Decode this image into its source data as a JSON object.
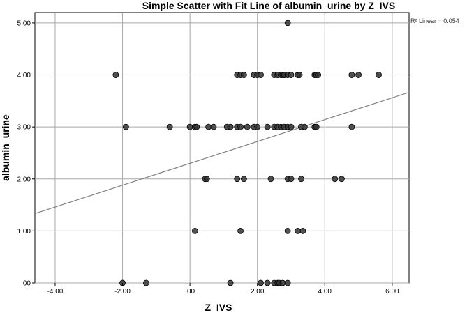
{
  "chart_data": {
    "type": "scatter",
    "title": "Simple Scatter with Fit Line of albumin_urine by Z_IVS",
    "xlabel": "Z_IVS",
    "ylabel": "albumin_urine",
    "xlim": [
      -4.6,
      6.5
    ],
    "ylim": [
      0,
      5.2
    ],
    "x_ticks": [
      -4,
      -2,
      0,
      2,
      4,
      6
    ],
    "x_tick_labels": [
      "-4.00",
      "-2.00",
      ".00",
      "2.00",
      "4.00",
      "6.00"
    ],
    "y_ticks": [
      0,
      1,
      2,
      3,
      4,
      5
    ],
    "y_tick_labels": [
      ".00",
      "1.00",
      "2.00",
      "3.00",
      "4.00",
      "5.00"
    ],
    "grid": true,
    "fit_line": {
      "intercept": 2.3,
      "slope": 0.21,
      "label": "R² Linear = 0.054"
    },
    "marker_color": "#333333",
    "line_color": "#808080",
    "series": [
      {
        "points": [
          [
            2.9,
            5
          ],
          [
            -2.2,
            4
          ],
          [
            1.4,
            4
          ],
          [
            1.5,
            4
          ],
          [
            1.6,
            4
          ],
          [
            1.9,
            4
          ],
          [
            2.0,
            4
          ],
          [
            2.1,
            4
          ],
          [
            2.5,
            4
          ],
          [
            2.6,
            4
          ],
          [
            2.7,
            4
          ],
          [
            2.75,
            4
          ],
          [
            2.8,
            4
          ],
          [
            2.9,
            4
          ],
          [
            3.0,
            4
          ],
          [
            3.2,
            4
          ],
          [
            3.25,
            4
          ],
          [
            3.7,
            4
          ],
          [
            3.75,
            4
          ],
          [
            3.8,
            4
          ],
          [
            4.8,
            4
          ],
          [
            5.0,
            4
          ],
          [
            5.6,
            4
          ],
          [
            -1.9,
            3
          ],
          [
            -0.6,
            3
          ],
          [
            0.0,
            3
          ],
          [
            0.15,
            3
          ],
          [
            0.2,
            3
          ],
          [
            0.55,
            3
          ],
          [
            0.7,
            3
          ],
          [
            1.1,
            3
          ],
          [
            1.2,
            3
          ],
          [
            1.4,
            3
          ],
          [
            1.5,
            3
          ],
          [
            1.7,
            3
          ],
          [
            1.9,
            3
          ],
          [
            2.0,
            3
          ],
          [
            2.3,
            3
          ],
          [
            2.5,
            3
          ],
          [
            2.6,
            3
          ],
          [
            2.7,
            3
          ],
          [
            2.8,
            3
          ],
          [
            2.9,
            3
          ],
          [
            3.0,
            3
          ],
          [
            3.3,
            3
          ],
          [
            3.4,
            3
          ],
          [
            3.7,
            3
          ],
          [
            3.75,
            3
          ],
          [
            4.8,
            3
          ],
          [
            0.45,
            2
          ],
          [
            0.5,
            2
          ],
          [
            1.4,
            2
          ],
          [
            1.6,
            2
          ],
          [
            2.4,
            2
          ],
          [
            2.9,
            2
          ],
          [
            3.0,
            2
          ],
          [
            3.3,
            2
          ],
          [
            4.3,
            2
          ],
          [
            4.5,
            2
          ],
          [
            0.15,
            1
          ],
          [
            1.5,
            1
          ],
          [
            2.9,
            1
          ],
          [
            3.2,
            1
          ],
          [
            3.35,
            1
          ],
          [
            -2.0,
            0
          ],
          [
            -1.3,
            0
          ],
          [
            1.2,
            0
          ],
          [
            2.1,
            0
          ],
          [
            2.3,
            0
          ],
          [
            2.5,
            0
          ],
          [
            2.6,
            0
          ],
          [
            2.65,
            0
          ],
          [
            2.75,
            0
          ],
          [
            2.9,
            0
          ]
        ]
      }
    ]
  }
}
